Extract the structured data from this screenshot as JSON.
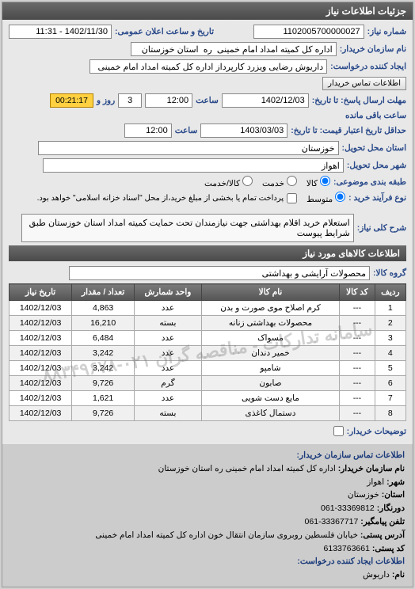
{
  "panel": {
    "title": "جزئیات اطلاعات نیاز"
  },
  "labels": {
    "need_no": "شماره نیاز:",
    "announce_dt": "تاریخ و ساعت اعلان عمومی:",
    "buyer_name": "نام سازمان خریدار:",
    "requester": "ایجاد کننده درخواست:",
    "buyer_contact_btn": "اطلاعات تماس خریدار",
    "send_deadline": "مهلت ارسال پاسخ: تا تاریخ:",
    "time": "ساعت",
    "remaining": "ساعت باقی مانده",
    "and_day": "روز و",
    "validity_from": "حداقل تاریخ اعتبار قیمت: تا تاریخ:",
    "province": "استان محل تحویل:",
    "city": "شهر محل تحویل:",
    "budget_row": "طبقه بندی موضوعی:",
    "goods": "کالا",
    "service": "خدمت",
    "cash_credit": "کالا/خدمت",
    "pay_type": "نوع فرآیند خرید :",
    "pay_mid": "متوسط",
    "pay_note": "پرداخت تمام یا بخشی از مبلغ خرید،از محل \"اسناد خزانه اسلامی\" خواهد بود.",
    "need_desc": "شرح کلی نیاز:",
    "goods_group": "گروه کالا:",
    "buyer_notes": "توضیحات خریدار:",
    "items_hdr": "اطلاعات کالاهای مورد نیاز"
  },
  "values": {
    "need_no": "1102005700000027",
    "announce_dt": "1402/11/30 - 11:31",
    "buyer_name": "اداره کل کمیته امداد امام خمینی  ره  استان خوزستان",
    "requester": "داریوش رضایی ویزرد کارپرداز اداره کل کمیته امداد امام خمینی  ره  استان خوزس",
    "send_date": "1402/12/03",
    "send_time": "12:00",
    "remain_days": "3",
    "remain_time": "00:21:17",
    "valid_date": "1403/03/03",
    "valid_time": "12:00",
    "province": "خوزستان",
    "city": "اهواز",
    "need_desc": "استعلام خرید اقلام بهداشتی جهت نیازمندان تحت حمایت کمیته امداد استان خوزستان طبق شرایط پیوست",
    "goods_group": "محصولات آرایشی و بهداشتی"
  },
  "watermark": "سامانه تدارکات - مناقصه گران ۰۲۱-۸۸۳۴۹۶۷۸",
  "table": {
    "columns": [
      "ردیف",
      "کد کالا",
      "نام کالا",
      "واحد شمارش",
      "تعداد / مقدار",
      "تاریخ نیاز"
    ],
    "rows": [
      [
        "1",
        "---",
        "کرم اصلاح موی صورت و بدن",
        "عدد",
        "4,863",
        "1402/12/03"
      ],
      [
        "2",
        "---",
        "محصولات بهداشتی زنانه",
        "بسته",
        "16,210",
        "1402/12/03"
      ],
      [
        "3",
        "---",
        "مسواک",
        "عدد",
        "6,484",
        "1402/12/03"
      ],
      [
        "4",
        "---",
        "خمیر دندان",
        "عدد",
        "3,242",
        "1402/12/03"
      ],
      [
        "5",
        "---",
        "شامپو",
        "عدد",
        "3,242",
        "1402/12/03"
      ],
      [
        "6",
        "---",
        "صابون",
        "گرم",
        "9,726",
        "1402/12/03"
      ],
      [
        "7",
        "---",
        "مایع دست شویی",
        "عدد",
        "1,621",
        "1402/12/03"
      ],
      [
        "8",
        "---",
        "دستمال کاغذی",
        "بسته",
        "9,726",
        "1402/12/03"
      ]
    ]
  },
  "contact": {
    "title": "اطلاعات تماس سازمان خریدار:",
    "org_lbl": "نام سازمان خریدار:",
    "org": "اداره کل کمیته امداد امام خمینی ره استان خوزستان",
    "city_lbl": "شهر:",
    "city": "اهواز",
    "prov_lbl": "استان:",
    "prov": "خوزستان",
    "tel_lbl": "دورنگار:",
    "tel": "33369812-061",
    "phone_lbl": "تلفن پیامگیر:",
    "phone": "33367717-061",
    "addr_lbl": "آدرس پستی:",
    "addr": "خیابان فلسطین روبروی سازمان انتقال خون اداره کل کمیته امداد امام خمینی",
    "post_lbl": "کد پستی:",
    "post": "6133763661",
    "req_lbl": "نام:",
    "req": "داریوش",
    "creator_hdr": "اطلاعات ایجاد کننده درخواست:"
  }
}
